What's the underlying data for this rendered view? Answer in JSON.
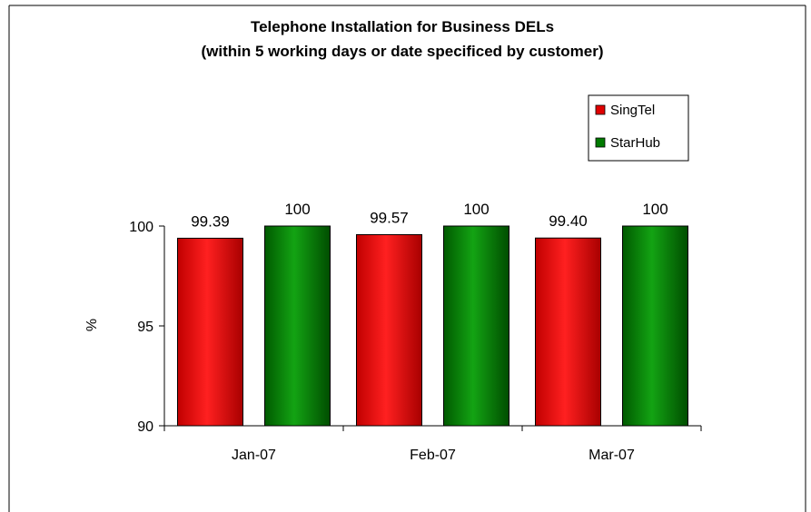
{
  "chart_data": {
    "type": "bar",
    "title": "Telephone Installation for Business DELs",
    "subtitle": "(within 5 working days or date specificed by customer)",
    "categories": [
      "Jan-07",
      "Feb-07",
      "Mar-07"
    ],
    "series": [
      {
        "name": "SingTel",
        "values": [
          99.39,
          99.57,
          99.4
        ],
        "labels": [
          "99.39",
          "99.57",
          "99.40"
        ],
        "color": "#e00000"
      },
      {
        "name": "StarHub",
        "values": [
          100,
          100,
          100
        ],
        "labels": [
          "100",
          "100",
          "100"
        ],
        "color": "#007a00"
      }
    ],
    "xlabel": "",
    "ylabel": "%",
    "ylim": [
      90,
      100
    ],
    "yticks": [
      90,
      95,
      100
    ],
    "grid": false,
    "legend_position": "top-right"
  }
}
